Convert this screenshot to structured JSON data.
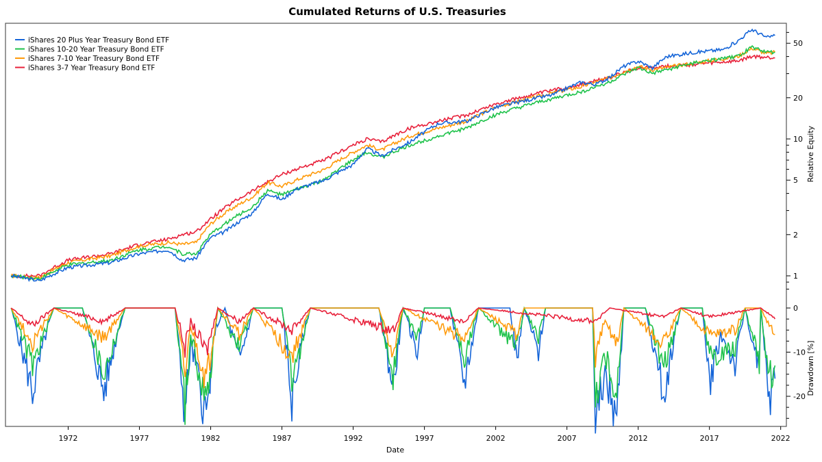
{
  "chart_data": {
    "type": "line",
    "title": "Cumulated Returns of U.S. Treasuries",
    "xlabel": "Date",
    "xticks": [
      "1972",
      "1977",
      "1982",
      "1987",
      "1992",
      "1997",
      "2002",
      "2007",
      "2012",
      "2017",
      "2022"
    ],
    "xlim": [
      1967.6,
      2022.4
    ],
    "legend_position": "top-left",
    "top_panel": {
      "ylabel": "Relative Equity",
      "scale": "log",
      "ylim": [
        0.78,
        70
      ],
      "yticks": [
        "1",
        "2",
        "5",
        "10",
        "20",
        "50"
      ]
    },
    "bottom_panel": {
      "ylabel": "Drawdown [%]",
      "ylim": [
        -27,
        1.5
      ],
      "yticks": [
        "0",
        "-10",
        "-20"
      ]
    },
    "series": [
      {
        "name": "iShares 20 Plus Year Treasury Bond ETF",
        "color": "#1565d8",
        "equity": [
          [
            1968,
            1.0
          ],
          [
            1970,
            0.92
          ],
          [
            1972,
            1.15
          ],
          [
            1975,
            1.25
          ],
          [
            1977,
            1.45
          ],
          [
            1979,
            1.55
          ],
          [
            1980,
            1.3
          ],
          [
            1981,
            1.35
          ],
          [
            1982,
            1.9
          ],
          [
            1983,
            2.1
          ],
          [
            1985,
            2.9
          ],
          [
            1986,
            4.0
          ],
          [
            1987,
            3.6
          ],
          [
            1988,
            4.3
          ],
          [
            1990,
            5.0
          ],
          [
            1992,
            6.5
          ],
          [
            1993,
            8.5
          ],
          [
            1994,
            7.5
          ],
          [
            1996,
            9.5
          ],
          [
            1998,
            13
          ],
          [
            2000,
            13.5
          ],
          [
            2002,
            17
          ],
          [
            2004,
            19
          ],
          [
            2006,
            21
          ],
          [
            2008,
            26
          ],
          [
            2009,
            25
          ],
          [
            2010,
            28
          ],
          [
            2011,
            34
          ],
          [
            2012,
            37
          ],
          [
            2013,
            33
          ],
          [
            2014,
            40
          ],
          [
            2016,
            43
          ],
          [
            2018,
            45
          ],
          [
            2019,
            52
          ],
          [
            2020,
            63
          ],
          [
            2021,
            55
          ],
          [
            2021.6,
            57
          ]
        ],
        "drawdown": [
          [
            1968,
            0
          ],
          [
            1969.5,
            -19
          ],
          [
            1970.5,
            -5
          ],
          [
            1971,
            0
          ],
          [
            1973,
            0
          ],
          [
            1974.5,
            -19
          ],
          [
            1975.5,
            -5
          ],
          [
            1976,
            0
          ],
          [
            1979.5,
            0
          ],
          [
            1980.2,
            -24
          ],
          [
            1980.6,
            -8
          ],
          [
            1981.7,
            -25
          ],
          [
            1982.3,
            -5
          ],
          [
            1983,
            0
          ],
          [
            1984,
            -12
          ],
          [
            1985,
            0
          ],
          [
            1987,
            0
          ],
          [
            1987.7,
            -21
          ],
          [
            1988.5,
            -6
          ],
          [
            1989,
            0
          ],
          [
            1993.8,
            0
          ],
          [
            1994.8,
            -18
          ],
          [
            1995.5,
            0
          ],
          [
            1996.5,
            -10
          ],
          [
            1997,
            0
          ],
          [
            1998.8,
            0
          ],
          [
            1999.8,
            -17
          ],
          [
            2000.8,
            0
          ],
          [
            2003,
            0
          ],
          [
            2003.5,
            -12
          ],
          [
            2004,
            0
          ],
          [
            2005,
            -10
          ],
          [
            2005.5,
            0
          ],
          [
            2008.8,
            0
          ],
          [
            2009,
            -27
          ],
          [
            2009.6,
            -15
          ],
          [
            2010.5,
            -25
          ],
          [
            2011,
            0
          ],
          [
            2012.5,
            0
          ],
          [
            2013.8,
            -20
          ],
          [
            2014.6,
            -5
          ],
          [
            2015,
            0
          ],
          [
            2016.5,
            0
          ],
          [
            2017,
            -17
          ],
          [
            2017.8,
            -6
          ],
          [
            2018.8,
            -13
          ],
          [
            2019.5,
            0
          ],
          [
            2020.5,
            -15
          ],
          [
            2020.6,
            0
          ],
          [
            2021.2,
            -21
          ],
          [
            2021.6,
            -16
          ]
        ]
      },
      {
        "name": "iShares 10-20 Year Treasury Bond ETF",
        "color": "#1ec24a",
        "equity": [
          [
            1968,
            1.0
          ],
          [
            1970,
            0.95
          ],
          [
            1972,
            1.2
          ],
          [
            1975,
            1.3
          ],
          [
            1977,
            1.55
          ],
          [
            1979,
            1.65
          ],
          [
            1980,
            1.45
          ],
          [
            1981,
            1.45
          ],
          [
            1982,
            2.0
          ],
          [
            1985,
            3.2
          ],
          [
            1986,
            4.2
          ],
          [
            1987,
            3.9
          ],
          [
            1990,
            5.0
          ],
          [
            1993,
            8.0
          ],
          [
            1994,
            7.3
          ],
          [
            1996,
            9.0
          ],
          [
            2000,
            12
          ],
          [
            2002,
            15
          ],
          [
            2008,
            22
          ],
          [
            2010,
            26
          ],
          [
            2012,
            33
          ],
          [
            2013,
            30
          ],
          [
            2016,
            36
          ],
          [
            2019,
            40
          ],
          [
            2020,
            47
          ],
          [
            2021,
            43
          ],
          [
            2021.6,
            43
          ]
        ],
        "drawdown": [
          [
            1968,
            0
          ],
          [
            1969.5,
            -13
          ],
          [
            1971,
            0
          ],
          [
            1973,
            0
          ],
          [
            1974.5,
            -15
          ],
          [
            1976,
            0
          ],
          [
            1979.5,
            0
          ],
          [
            1980.2,
            -22
          ],
          [
            1980.6,
            -6
          ],
          [
            1981.7,
            -22
          ],
          [
            1982.5,
            0
          ],
          [
            1984,
            -9
          ],
          [
            1985,
            0
          ],
          [
            1987,
            0
          ],
          [
            1987.7,
            -17
          ],
          [
            1989,
            0
          ],
          [
            1993.8,
            0
          ],
          [
            1994.8,
            -15
          ],
          [
            1995.5,
            0
          ],
          [
            1996.5,
            -7
          ],
          [
            1997,
            0
          ],
          [
            1998.8,
            0
          ],
          [
            1999.8,
            -12
          ],
          [
            2000.8,
            0
          ],
          [
            2003.5,
            -9
          ],
          [
            2004,
            0
          ],
          [
            2005,
            -7
          ],
          [
            2005.5,
            0
          ],
          [
            2008.8,
            0
          ],
          [
            2009,
            -21
          ],
          [
            2009.6,
            -10
          ],
          [
            2010.5,
            -19
          ],
          [
            2011,
            0
          ],
          [
            2012.5,
            0
          ],
          [
            2013.8,
            -14
          ],
          [
            2015,
            0
          ],
          [
            2016.5,
            0
          ],
          [
            2017,
            -11
          ],
          [
            2018.8,
            -9
          ],
          [
            2019.5,
            0
          ],
          [
            2020.5,
            -12
          ],
          [
            2020.6,
            0
          ],
          [
            2021.2,
            -16
          ],
          [
            2021.6,
            -13
          ]
        ]
      },
      {
        "name": "iShares 7-10 Year Treasury Bond ETF",
        "color": "#ff9a0a",
        "equity": [
          [
            1968,
            1.0
          ],
          [
            1970,
            0.97
          ],
          [
            1972,
            1.25
          ],
          [
            1975,
            1.4
          ],
          [
            1977,
            1.65
          ],
          [
            1979,
            1.75
          ],
          [
            1980,
            1.7
          ],
          [
            1981,
            1.75
          ],
          [
            1982,
            2.4
          ],
          [
            1985,
            3.8
          ],
          [
            1986,
            4.8
          ],
          [
            1987,
            4.5
          ],
          [
            1990,
            6.0
          ],
          [
            1993,
            9.0
          ],
          [
            1994,
            8.3
          ],
          [
            1996,
            10.5
          ],
          [
            2000,
            13.5
          ],
          [
            2002,
            17
          ],
          [
            2008,
            24
          ],
          [
            2010,
            28
          ],
          [
            2012,
            34
          ],
          [
            2013,
            32
          ],
          [
            2016,
            36
          ],
          [
            2019,
            40
          ],
          [
            2020,
            46
          ],
          [
            2021,
            42
          ],
          [
            2021.6,
            43
          ]
        ],
        "drawdown": [
          [
            1968,
            0
          ],
          [
            1969.5,
            -8
          ],
          [
            1971,
            0
          ],
          [
            1974.5,
            -7
          ],
          [
            1976,
            0
          ],
          [
            1979.5,
            0
          ],
          [
            1980.2,
            -16
          ],
          [
            1980.6,
            -4
          ],
          [
            1981.7,
            -17
          ],
          [
            1982.5,
            0
          ],
          [
            1984,
            -6
          ],
          [
            1985,
            0
          ],
          [
            1987.7,
            -11
          ],
          [
            1989,
            0
          ],
          [
            1993.8,
            0
          ],
          [
            1994.8,
            -10
          ],
          [
            1995.5,
            0
          ],
          [
            1999.8,
            -7
          ],
          [
            2000.8,
            0
          ],
          [
            2003.5,
            -6
          ],
          [
            2004,
            0
          ],
          [
            2008.8,
            0
          ],
          [
            2009,
            -11
          ],
          [
            2009.6,
            -3
          ],
          [
            2010.5,
            -8
          ],
          [
            2011,
            0
          ],
          [
            2013.8,
            -8
          ],
          [
            2015,
            0
          ],
          [
            2017,
            -6
          ],
          [
            2018.8,
            -5
          ],
          [
            2019.5,
            0
          ],
          [
            2020.6,
            0
          ],
          [
            2021.2,
            -4
          ],
          [
            2021.6,
            -6
          ]
        ]
      },
      {
        "name": "iShares 3-7 Year Treasury Bond ETF",
        "color": "#e8203a",
        "equity": [
          [
            1968,
            1.0
          ],
          [
            1970,
            1.0
          ],
          [
            1972,
            1.3
          ],
          [
            1975,
            1.45
          ],
          [
            1977,
            1.7
          ],
          [
            1979,
            1.85
          ],
          [
            1980,
            2.0
          ],
          [
            1981,
            2.1
          ],
          [
            1982,
            2.6
          ],
          [
            1985,
            4.2
          ],
          [
            1987,
            5.5
          ],
          [
            1990,
            7
          ],
          [
            1993,
            10
          ],
          [
            1994,
            9.5
          ],
          [
            1996,
            12
          ],
          [
            2000,
            15
          ],
          [
            2002,
            18
          ],
          [
            2008,
            25
          ],
          [
            2010,
            28
          ],
          [
            2012,
            33
          ],
          [
            2016,
            35
          ],
          [
            2019,
            37
          ],
          [
            2020,
            40
          ],
          [
            2021.6,
            39
          ]
        ],
        "drawdown": [
          [
            1968,
            0
          ],
          [
            1969.5,
            -4
          ],
          [
            1971,
            0
          ],
          [
            1974.5,
            -3
          ],
          [
            1976,
            0
          ],
          [
            1979.5,
            0
          ],
          [
            1980.2,
            -9
          ],
          [
            1980.6,
            -3
          ],
          [
            1981.7,
            -10
          ],
          [
            1982.5,
            0
          ],
          [
            1984,
            -3
          ],
          [
            1985,
            0
          ],
          [
            1987.7,
            -5
          ],
          [
            1989,
            0
          ],
          [
            1994.8,
            -5
          ],
          [
            1995.5,
            0
          ],
          [
            1999.8,
            -3
          ],
          [
            2000.8,
            0
          ],
          [
            2009,
            -3
          ],
          [
            2010,
            0
          ],
          [
            2013.8,
            -2
          ],
          [
            2015,
            0
          ],
          [
            2017,
            -2
          ],
          [
            2020.6,
            0
          ],
          [
            2021.2,
            -1.5
          ],
          [
            2021.6,
            -2.5
          ]
        ]
      }
    ]
  }
}
